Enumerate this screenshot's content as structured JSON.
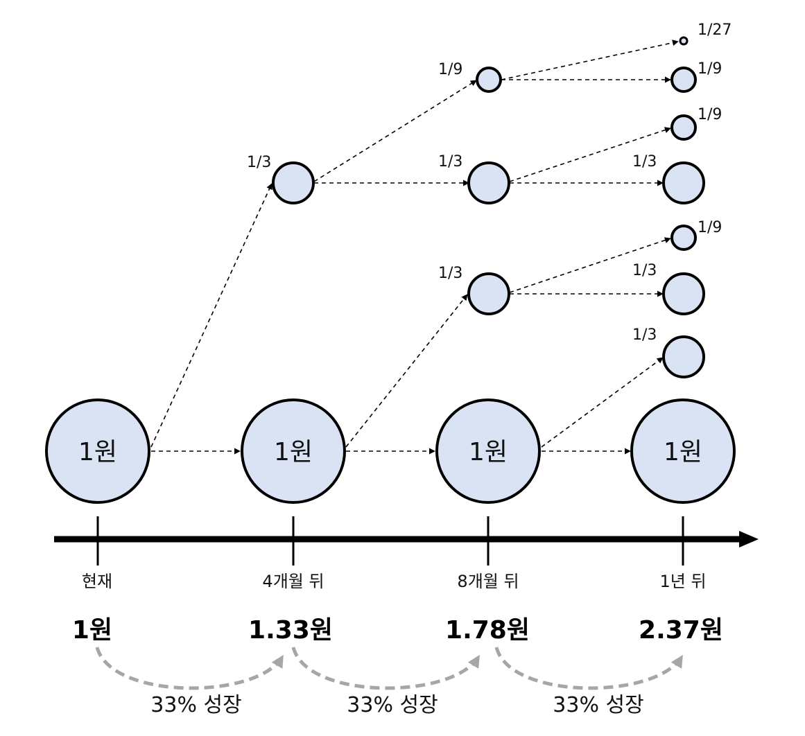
{
  "colors": {
    "node_fill": "#dae3f3",
    "growth_arrow": "#a6a6a6"
  },
  "nodes": {
    "now": "1원",
    "m4": "1원",
    "m8": "1원",
    "y1": "1원"
  },
  "fractions": {
    "a_m4": "1/3",
    "b_m8_top": "1/9",
    "c_m8_mid": "1/3",
    "d_m8_low": "1/3",
    "e_y1_tiny": "1/27",
    "f_y1_1": "1/9",
    "g_y1_2": "1/9",
    "h_y1_3": "1/3",
    "i_y1_4": "1/9",
    "j_y1_5": "1/3",
    "k_y1_6": "1/3"
  },
  "timeline": {
    "labels": [
      "현재",
      "4개월 뒤",
      "8개월 뒤",
      "1년 뒤"
    ]
  },
  "values": [
    "1원",
    "1.33원",
    "1.78원",
    "2.37원"
  ],
  "growth": [
    "33% 성장",
    "33% 성장",
    "33% 성장"
  ]
}
